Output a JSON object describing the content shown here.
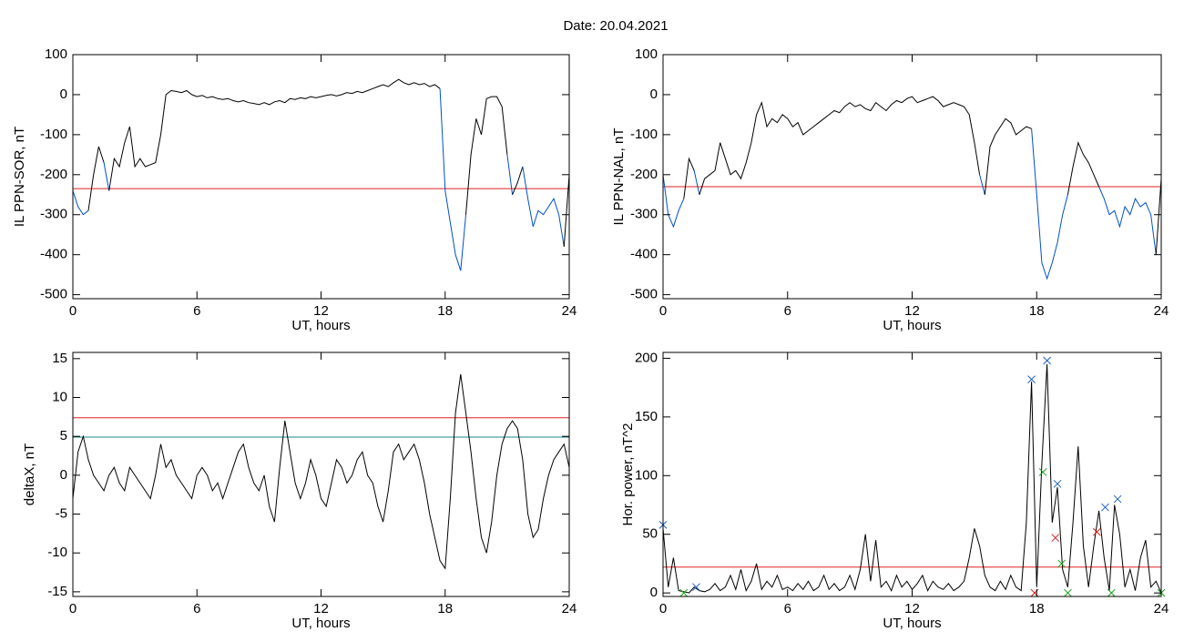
{
  "title": "Date:  20.04.2021",
  "chart_data": [
    {
      "type": "line",
      "ylabel": "IL PPN-SOR, nT",
      "xlabel": "UT, hours",
      "xlim": [
        0,
        24
      ],
      "xticks": [
        0,
        6,
        12,
        18,
        24
      ],
      "ylim": [
        -510,
        100
      ],
      "yticks": [
        100,
        0,
        -100,
        -200,
        -300,
        -400,
        -500
      ],
      "color": "#000000",
      "below_color": "#0050c8",
      "hlines": [
        {
          "value": -235,
          "color": "#e02020"
        }
      ],
      "x": [
        0,
        0.25,
        0.5,
        0.75,
        1,
        1.25,
        1.5,
        1.75,
        2,
        2.25,
        2.5,
        2.75,
        3,
        3.25,
        3.5,
        3.75,
        4,
        4.25,
        4.5,
        4.75,
        5,
        5.25,
        5.5,
        5.75,
        6,
        6.25,
        6.5,
        6.75,
        7,
        7.25,
        7.5,
        7.75,
        8,
        8.25,
        8.5,
        8.75,
        9,
        9.25,
        9.5,
        9.75,
        10,
        10.25,
        10.5,
        10.75,
        11,
        11.25,
        11.5,
        11.75,
        12,
        12.25,
        12.5,
        12.75,
        13,
        13.25,
        13.5,
        13.75,
        14,
        14.25,
        14.5,
        14.75,
        15,
        15.25,
        15.5,
        15.75,
        16,
        16.25,
        16.5,
        16.75,
        17,
        17.25,
        17.5,
        17.75,
        18,
        18.25,
        18.5,
        18.75,
        19,
        19.25,
        19.5,
        19.75,
        20,
        20.25,
        20.5,
        20.75,
        21,
        21.25,
        21.5,
        21.75,
        22,
        22.25,
        22.5,
        22.75,
        23,
        23.25,
        23.5,
        23.75,
        24
      ],
      "values": [
        -240,
        -280,
        -300,
        -290,
        -200,
        -130,
        -170,
        -240,
        -160,
        -180,
        -120,
        -80,
        -180,
        -160,
        -180,
        -175,
        -170,
        -100,
        0,
        10,
        8,
        5,
        10,
        0,
        -5,
        -2,
        -8,
        -5,
        -10,
        -12,
        -10,
        -15,
        -18,
        -15,
        -20,
        -22,
        -25,
        -20,
        -25,
        -18,
        -15,
        -20,
        -10,
        -12,
        -8,
        -10,
        -5,
        -8,
        -5,
        -2,
        0,
        -3,
        0,
        5,
        3,
        8,
        5,
        10,
        15,
        20,
        25,
        20,
        30,
        38,
        30,
        25,
        30,
        25,
        28,
        20,
        25,
        15,
        -240,
        -320,
        -400,
        -440,
        -300,
        -150,
        -60,
        -100,
        -10,
        -5,
        -5,
        -30,
        -150,
        -250,
        -220,
        -180,
        -260,
        -330,
        -290,
        -300,
        -280,
        -260,
        -300,
        -380,
        -200
      ]
    },
    {
      "type": "line",
      "ylabel": "IL PPN-NAL, nT",
      "xlabel": "UT, hours",
      "xlim": [
        0,
        24
      ],
      "xticks": [
        0,
        6,
        12,
        18,
        24
      ],
      "ylim": [
        -510,
        100
      ],
      "yticks": [
        100,
        0,
        -100,
        -200,
        -300,
        -400,
        -500
      ],
      "color": "#000000",
      "below_color": "#0050c8",
      "hlines": [
        {
          "value": -230,
          "color": "#e02020"
        }
      ],
      "x": [
        0,
        0.25,
        0.5,
        0.75,
        1,
        1.25,
        1.5,
        1.75,
        2,
        2.25,
        2.5,
        2.75,
        3,
        3.25,
        3.5,
        3.75,
        4,
        4.25,
        4.5,
        4.75,
        5,
        5.25,
        5.5,
        5.75,
        6,
        6.25,
        6.5,
        6.75,
        7,
        7.25,
        7.5,
        7.75,
        8,
        8.25,
        8.5,
        8.75,
        9,
        9.25,
        9.5,
        9.75,
        10,
        10.25,
        10.5,
        10.75,
        11,
        11.25,
        11.5,
        11.75,
        12,
        12.25,
        12.5,
        12.75,
        13,
        13.25,
        13.5,
        13.75,
        14,
        14.25,
        14.5,
        14.75,
        15,
        15.25,
        15.5,
        15.75,
        16,
        16.25,
        16.5,
        16.75,
        17,
        17.25,
        17.5,
        17.75,
        18,
        18.25,
        18.5,
        18.75,
        19,
        19.25,
        19.5,
        19.75,
        20,
        20.25,
        20.5,
        20.75,
        21,
        21.25,
        21.5,
        21.75,
        22,
        22.25,
        22.5,
        22.75,
        23,
        23.25,
        23.5,
        23.75,
        24
      ],
      "values": [
        -200,
        -300,
        -330,
        -290,
        -260,
        -160,
        -190,
        -250,
        -210,
        -200,
        -190,
        -120,
        -160,
        -200,
        -190,
        -210,
        -170,
        -120,
        -50,
        -20,
        -80,
        -60,
        -70,
        -50,
        -60,
        -80,
        -70,
        -100,
        -90,
        -80,
        -70,
        -60,
        -50,
        -40,
        -45,
        -30,
        -20,
        -30,
        -25,
        -35,
        -40,
        -20,
        -30,
        -40,
        -25,
        -15,
        -20,
        -10,
        -5,
        -20,
        -15,
        -10,
        -5,
        -15,
        -30,
        -25,
        -20,
        -25,
        -30,
        -50,
        -120,
        -200,
        -250,
        -130,
        -100,
        -80,
        -60,
        -70,
        -100,
        -90,
        -80,
        -85,
        -250,
        -420,
        -460,
        -420,
        -370,
        -300,
        -250,
        -180,
        -120,
        -150,
        -170,
        -200,
        -230,
        -260,
        -300,
        -290,
        -330,
        -280,
        -300,
        -260,
        -280,
        -270,
        -300,
        -400,
        -210
      ]
    },
    {
      "type": "line",
      "ylabel": "deltaX, nT",
      "xlabel": "UT, hours",
      "xlim": [
        0,
        24
      ],
      "xticks": [
        0,
        6,
        12,
        18,
        24
      ],
      "ylim": [
        -15.6,
        15.8
      ],
      "yticks": [
        15,
        10,
        5,
        0,
        -5,
        -10,
        -15
      ],
      "color": "#000000",
      "hlines": [
        {
          "value": 7.4,
          "color": "#e02020"
        },
        {
          "value": 4.9,
          "color": "#1a8a8a"
        }
      ],
      "x": [
        0,
        0.25,
        0.5,
        0.75,
        1,
        1.25,
        1.5,
        1.75,
        2,
        2.25,
        2.5,
        2.75,
        3,
        3.25,
        3.5,
        3.75,
        4,
        4.25,
        4.5,
        4.75,
        5,
        5.25,
        5.5,
        5.75,
        6,
        6.25,
        6.5,
        6.75,
        7,
        7.25,
        7.5,
        7.75,
        8,
        8.25,
        8.5,
        8.75,
        9,
        9.25,
        9.5,
        9.75,
        10,
        10.25,
        10.5,
        10.75,
        11,
        11.25,
        11.5,
        11.75,
        12,
        12.25,
        12.5,
        12.75,
        13,
        13.25,
        13.5,
        13.75,
        14,
        14.25,
        14.5,
        14.75,
        15,
        15.25,
        15.5,
        15.75,
        16,
        16.25,
        16.5,
        16.75,
        17,
        17.25,
        17.5,
        17.75,
        18,
        18.25,
        18.5,
        18.75,
        19,
        19.25,
        19.5,
        19.75,
        20,
        20.25,
        20.5,
        20.75,
        21,
        21.25,
        21.5,
        21.75,
        22,
        22.25,
        22.5,
        22.75,
        23,
        23.25,
        23.5,
        23.75,
        24
      ],
      "values": [
        -3,
        3,
        5,
        2,
        0,
        -1,
        -2,
        0,
        1,
        -1,
        -2,
        1,
        0,
        -1,
        -2,
        -3,
        0,
        4,
        1,
        2,
        0,
        -1,
        -2,
        -3,
        0,
        1,
        0,
        -2,
        -1,
        -3,
        -1,
        1,
        3,
        4,
        1,
        -1,
        -2,
        0,
        -4,
        -6,
        1,
        7,
        3,
        -1,
        -3,
        -1,
        2,
        0,
        -3,
        -4,
        -1,
        2,
        1,
        -1,
        0,
        2,
        3,
        0,
        -1,
        -4,
        -6,
        -2,
        3,
        4,
        2,
        3,
        4,
        2,
        -1,
        -5,
        -8,
        -11,
        -12,
        -3,
        8,
        13,
        8,
        3,
        -3,
        -8,
        -10,
        -6,
        0,
        4,
        6,
        7,
        6,
        2,
        -5,
        -8,
        -7,
        -3,
        0,
        2,
        3,
        4,
        1
      ]
    },
    {
      "type": "line",
      "ylabel": "Hor. power, nT^2",
      "xlabel": "UT, hours",
      "xlim": [
        0,
        24
      ],
      "xticks": [
        0,
        6,
        12,
        18,
        24
      ],
      "ylim": [
        -3,
        205
      ],
      "yticks": [
        200,
        150,
        100,
        50,
        0
      ],
      "color": "#000000",
      "hlines": [
        {
          "value": 22,
          "color": "#e02020"
        }
      ],
      "x": [
        0,
        0.25,
        0.5,
        0.75,
        1,
        1.25,
        1.5,
        1.75,
        2,
        2.25,
        2.5,
        2.75,
        3,
        3.25,
        3.5,
        3.75,
        4,
        4.25,
        4.5,
        4.75,
        5,
        5.25,
        5.5,
        5.75,
        6,
        6.25,
        6.5,
        6.75,
        7,
        7.25,
        7.5,
        7.75,
        8,
        8.25,
        8.5,
        8.75,
        9,
        9.25,
        9.5,
        9.75,
        10,
        10.25,
        10.5,
        10.75,
        11,
        11.25,
        11.5,
        11.75,
        12,
        12.25,
        12.5,
        12.75,
        13,
        13.25,
        13.5,
        13.75,
        14,
        14.25,
        14.5,
        14.75,
        15,
        15.25,
        15.5,
        15.75,
        16,
        16.25,
        16.5,
        16.75,
        17,
        17.25,
        17.5,
        17.75,
        18,
        18.25,
        18.5,
        18.75,
        19,
        19.25,
        19.5,
        19.75,
        20,
        20.25,
        20.5,
        20.75,
        21,
        21.25,
        21.5,
        21.75,
        22,
        22.25,
        22.5,
        22.75,
        23,
        23.25,
        23.5,
        23.75,
        24
      ],
      "values": [
        55,
        5,
        30,
        2,
        1,
        0,
        5,
        2,
        1,
        3,
        8,
        2,
        5,
        15,
        3,
        20,
        2,
        10,
        25,
        3,
        10,
        5,
        15,
        3,
        5,
        2,
        8,
        3,
        10,
        2,
        5,
        15,
        3,
        8,
        2,
        5,
        15,
        3,
        20,
        50,
        10,
        45,
        5,
        10,
        2,
        15,
        5,
        10,
        3,
        8,
        15,
        2,
        10,
        5,
        3,
        8,
        2,
        5,
        10,
        30,
        55,
        40,
        15,
        5,
        2,
        10,
        3,
        15,
        5,
        2,
        60,
        180,
        5,
        110,
        195,
        60,
        90,
        20,
        5,
        60,
        125,
        40,
        5,
        40,
        70,
        30,
        2,
        75,
        50,
        5,
        20,
        2,
        30,
        45,
        5,
        10,
        0
      ],
      "markers": [
        {
          "color": "#2060c0",
          "x": [
            0,
            1.6,
            17.75,
            18.5,
            19.0,
            21.3,
            21.9
          ],
          "y": [
            58,
            5,
            182,
            198,
            93,
            73,
            80
          ]
        },
        {
          "color": "#20a020",
          "x": [
            1.0,
            18.3,
            19.2,
            19.5,
            21.6,
            24
          ],
          "y": [
            0,
            103,
            25,
            0,
            0,
            0
          ]
        },
        {
          "color": "#d02020",
          "x": [
            17.9,
            18.9,
            20.9
          ],
          "y": [
            0,
            47,
            52
          ]
        }
      ]
    }
  ]
}
